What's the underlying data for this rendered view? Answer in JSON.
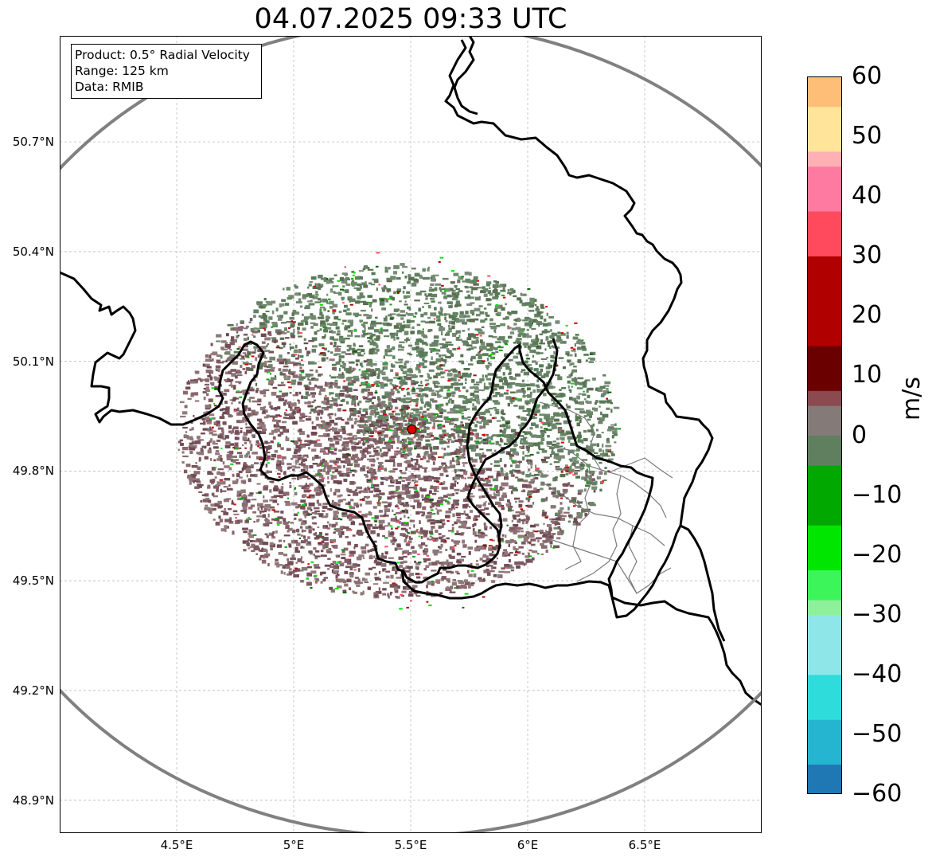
{
  "title": "04.07.2025 09:33 UTC",
  "info_box": {
    "product": "Product: 0.5° Radial Velocity",
    "range": "Range: 125 km",
    "data": "Data: RMIB"
  },
  "axes": {
    "lat_labels": [
      "50.7°N",
      "50.4°N",
      "50.1°N",
      "49.8°N",
      "49.5°N",
      "49.2°N",
      "48.9°N"
    ],
    "lat_values": [
      50.7,
      50.4,
      50.1,
      49.8,
      49.5,
      49.2,
      48.9
    ],
    "lon_labels": [
      "4.5°E",
      "5°E",
      "5.5°E",
      "6°E",
      "6.5°E"
    ],
    "lon_values": [
      4.5,
      5.0,
      5.5,
      6.0,
      6.5
    ],
    "lon_range": [
      4.0,
      7.0
    ],
    "lat_range": [
      48.81,
      50.99
    ],
    "grid": true
  },
  "radar": {
    "site_lon": 5.505,
    "site_lat": 49.914,
    "range_km": 125,
    "site_marker_color": "#e00000"
  },
  "colorbar": {
    "label": "m/s",
    "min": -60,
    "max": 60,
    "ticks": [
      "60",
      "50",
      "40",
      "30",
      "20",
      "10",
      "0",
      "−10",
      "−20",
      "−30",
      "−40",
      "−50",
      "−60"
    ],
    "tick_values": [
      60,
      50,
      40,
      30,
      20,
      10,
      0,
      -10,
      -20,
      -30,
      -40,
      -50,
      -60
    ],
    "stops": [
      {
        "v": -60,
        "c": "#1f77b4"
      },
      {
        "v": -55,
        "c": "#26b5d0"
      },
      {
        "v": -48,
        "c": "#2fdcdc"
      },
      {
        "v": -40,
        "c": "#8fe6e8"
      },
      {
        "v": -32,
        "c": "#b8eef0"
      },
      {
        "v": -31,
        "c": "#8ef09a"
      },
      {
        "v": -28,
        "c": "#3cf55a"
      },
      {
        "v": -23,
        "c": "#00e600"
      },
      {
        "v": -15,
        "c": "#00a800"
      },
      {
        "v": -6,
        "c": "#006400"
      },
      {
        "v": -5,
        "c": "#5f7f5f"
      },
      {
        "v": 0,
        "c": "#847a78"
      },
      {
        "v": 5,
        "c": "#8a4a50"
      },
      {
        "v": 6,
        "c": "#6a0000"
      },
      {
        "v": 15,
        "c": "#b00000"
      },
      {
        "v": 28,
        "c": "#ff0000"
      },
      {
        "v": 29,
        "c": "#ff4a5e"
      },
      {
        "v": 36,
        "c": "#ff7aa0"
      },
      {
        "v": 43,
        "c": "#ffb0b4"
      },
      {
        "v": 47,
        "c": "#ffe49a"
      },
      {
        "v": 54,
        "c": "#ffbe78"
      },
      {
        "v": 60,
        "c": "#ff9a58"
      }
    ]
  },
  "colors": {
    "receding": "#7f5a62",
    "approaching": "#628062",
    "border_country": "#000000",
    "border_region": "#7a7a7a",
    "range_ring": "#808080"
  }
}
